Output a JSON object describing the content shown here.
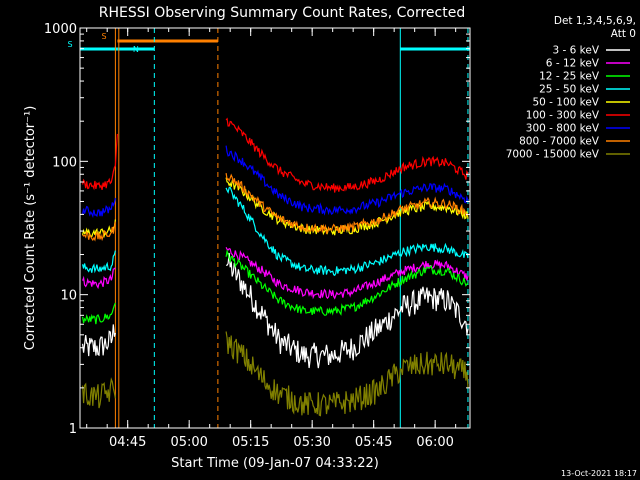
{
  "chart_data": {
    "type": "line",
    "title": "RHESSI Observing Summary Count Rates, Corrected",
    "xlabel": "Start Time (09-Jan-07 04:33:22)",
    "ylabel": "Corrected Count Rate (s⁻¹ detector⁻¹)",
    "yscale": "log",
    "ylim": [
      1,
      1000
    ],
    "xlim": [
      "04:33:22",
      "06:08:30"
    ],
    "x_ticks": [
      "04:45",
      "05:00",
      "05:15",
      "05:30",
      "05:45",
      "06:00"
    ],
    "y_ticks": [
      "1",
      "10",
      "100",
      "1000"
    ],
    "legend_header": [
      "Det 1,3,4,5,6,9,",
      "Att 0"
    ],
    "legend_placement": "right",
    "timestamp": "13-Oct-2021 18:17",
    "flags": [
      {
        "label": "S",
        "start": "04:33:22",
        "end": "04:42:30",
        "color": "#00ffff"
      },
      {
        "label": "S",
        "start": "04:42:30",
        "end": "05:07:00",
        "color": "#ff8000"
      },
      {
        "label": "N",
        "start": "04:42:30",
        "end": "04:51:30",
        "color": "#00ffff"
      },
      {
        "label": "",
        "start": "05:51:30",
        "end": "06:08:30",
        "color": "#00ffff"
      }
    ],
    "vertical_lines": [
      {
        "time": "04:33:22",
        "color": "#00ffff",
        "style": "solid"
      },
      {
        "time": "04:42:00",
        "color": "#ff8000",
        "style": "solid"
      },
      {
        "time": "04:42:50",
        "color": "#ff8000",
        "style": "solid"
      },
      {
        "time": "04:51:30",
        "color": "#00ffff",
        "style": "dashed"
      },
      {
        "time": "05:07:00",
        "color": "#ff8000",
        "style": "dashed"
      },
      {
        "time": "05:51:30",
        "color": "#00ffff",
        "style": "solid"
      },
      {
        "time": "06:08:00",
        "color": "#00ffff",
        "style": "dashed"
      }
    ],
    "gap": [
      "04:42:50",
      "05:09:30"
    ],
    "series": [
      {
        "name": "3 - 6 keV",
        "color": "#ffffff",
        "pre": [
          [
            "04:34",
            4.0
          ],
          [
            "04:38",
            4.0
          ],
          [
            "04:41",
            4.5
          ],
          [
            "04:42",
            6.0
          ]
        ],
        "post": [
          [
            "05:09",
            18.0
          ],
          [
            "05:13",
            12.0
          ],
          [
            "05:18",
            7.0
          ],
          [
            "05:22",
            4.5
          ],
          [
            "05:28",
            3.5
          ],
          [
            "05:35",
            3.5
          ],
          [
            "05:40",
            4.0
          ],
          [
            "05:46",
            5.5
          ],
          [
            "05:52",
            8.0
          ],
          [
            "05:58",
            9.5
          ],
          [
            "06:03",
            9.0
          ],
          [
            "06:08",
            6.0
          ]
        ]
      },
      {
        "name": "6 - 12 keV",
        "color": "#ff00ff",
        "pre": [
          [
            "04:34",
            12.5
          ],
          [
            "04:38",
            12.0
          ],
          [
            "04:41",
            13.0
          ],
          [
            "04:42",
            16.0
          ]
        ],
        "post": [
          [
            "05:09",
            22.0
          ],
          [
            "05:13",
            19.0
          ],
          [
            "05:18",
            15.0
          ],
          [
            "05:22",
            12.0
          ],
          [
            "05:28",
            10.5
          ],
          [
            "05:35",
            10.0
          ],
          [
            "05:40",
            10.5
          ],
          [
            "05:46",
            12.5
          ],
          [
            "05:52",
            15.0
          ],
          [
            "05:58",
            17.0
          ],
          [
            "06:03",
            16.5
          ],
          [
            "06:08",
            13.5
          ]
        ]
      },
      {
        "name": "12 - 25 keV",
        "color": "#00ff00",
        "pre": [
          [
            "04:34",
            6.5
          ],
          [
            "04:38",
            6.5
          ],
          [
            "04:41",
            7.0
          ],
          [
            "04:42",
            9.0
          ]
        ],
        "post": [
          [
            "05:09",
            20.0
          ],
          [
            "05:13",
            16.0
          ],
          [
            "05:18",
            11.5
          ],
          [
            "05:22",
            9.0
          ],
          [
            "05:28",
            7.5
          ],
          [
            "05:35",
            7.5
          ],
          [
            "05:40",
            8.0
          ],
          [
            "05:46",
            10.0
          ],
          [
            "05:52",
            13.0
          ],
          [
            "05:58",
            15.5
          ],
          [
            "06:03",
            15.0
          ],
          [
            "06:08",
            12.0
          ]
        ]
      },
      {
        "name": "25 - 50 keV",
        "color": "#00ffff",
        "pre": [
          [
            "04:34",
            16.0
          ],
          [
            "04:38",
            15.5
          ],
          [
            "04:41",
            16.5
          ],
          [
            "04:42",
            20.0
          ]
        ],
        "post": [
          [
            "05:09",
            65.0
          ],
          [
            "05:13",
            45.0
          ],
          [
            "05:18",
            27.0
          ],
          [
            "05:22",
            19.0
          ],
          [
            "05:28",
            15.5
          ],
          [
            "05:35",
            15.0
          ],
          [
            "05:40",
            15.5
          ],
          [
            "05:46",
            17.5
          ],
          [
            "05:52",
            21.0
          ],
          [
            "05:58",
            23.0
          ],
          [
            "06:03",
            22.0
          ],
          [
            "06:08",
            19.0
          ]
        ]
      },
      {
        "name": "50 - 100 keV",
        "color": "#ffff00",
        "pre": [
          [
            "04:34",
            29.0
          ],
          [
            "04:38",
            29.0
          ],
          [
            "04:41",
            30.0
          ],
          [
            "04:42",
            34.0
          ]
        ],
        "post": [
          [
            "05:09",
            72.0
          ],
          [
            "05:13",
            60.0
          ],
          [
            "05:18",
            44.0
          ],
          [
            "05:22",
            36.0
          ],
          [
            "05:28",
            31.0
          ],
          [
            "05:35",
            30.0
          ],
          [
            "05:40",
            31.0
          ],
          [
            "05:46",
            35.0
          ],
          [
            "05:52",
            42.0
          ],
          [
            "05:58",
            46.0
          ],
          [
            "06:03",
            45.0
          ],
          [
            "06:08",
            39.0
          ]
        ]
      },
      {
        "name": "100 - 300 keV",
        "color": "#ff0000",
        "pre": [
          [
            "04:34",
            68.0
          ],
          [
            "04:38",
            65.0
          ],
          [
            "04:41",
            70.0
          ],
          [
            "04:42",
            90.0
          ],
          [
            "04:42:40",
            200.0
          ]
        ],
        "post": [
          [
            "05:09",
            205.0
          ],
          [
            "05:13",
            160.0
          ],
          [
            "05:18",
            110.0
          ],
          [
            "05:22",
            85.0
          ],
          [
            "05:28",
            68.0
          ],
          [
            "05:35",
            63.0
          ],
          [
            "05:40",
            64.0
          ],
          [
            "05:46",
            72.0
          ],
          [
            "05:52",
            90.0
          ],
          [
            "05:58",
            100.0
          ],
          [
            "06:03",
            97.0
          ],
          [
            "06:08",
            77.0
          ]
        ]
      },
      {
        "name": "300 - 800 keV",
        "color": "#0000ff",
        "pre": [
          [
            "04:34",
            43.0
          ],
          [
            "04:38",
            41.0
          ],
          [
            "04:41",
            44.0
          ],
          [
            "04:42",
            55.0
          ]
        ],
        "post": [
          [
            "05:09",
            122.0
          ],
          [
            "05:13",
            100.0
          ],
          [
            "05:18",
            72.0
          ],
          [
            "05:22",
            55.0
          ],
          [
            "05:28",
            45.0
          ],
          [
            "05:35",
            43.0
          ],
          [
            "05:40",
            44.0
          ],
          [
            "05:46",
            49.0
          ],
          [
            "05:52",
            58.0
          ],
          [
            "05:58",
            64.0
          ],
          [
            "06:03",
            62.0
          ],
          [
            "06:08",
            51.0
          ]
        ]
      },
      {
        "name": "800 - 7000 keV",
        "color": "#ff8000",
        "pre": [
          [
            "04:34",
            28.0
          ],
          [
            "04:38",
            27.0
          ],
          [
            "04:41",
            29.0
          ],
          [
            "04:42",
            33.0
          ]
        ],
        "post": [
          [
            "05:09",
            80.0
          ],
          [
            "05:13",
            64.0
          ],
          [
            "05:18",
            46.0
          ],
          [
            "05:22",
            37.0
          ],
          [
            "05:28",
            32.0
          ],
          [
            "05:35",
            31.0
          ],
          [
            "05:40",
            32.0
          ],
          [
            "05:46",
            36.0
          ],
          [
            "05:52",
            44.0
          ],
          [
            "05:58",
            49.0
          ],
          [
            "06:03",
            48.0
          ],
          [
            "06:08",
            41.0
          ]
        ]
      },
      {
        "name": "7000 - 15000 keV",
        "color": "#808000",
        "pre": [
          [
            "04:34",
            1.8
          ],
          [
            "04:38",
            1.7
          ],
          [
            "04:41",
            1.9
          ],
          [
            "04:42",
            2.0
          ]
        ],
        "post": [
          [
            "05:09",
            4.5
          ],
          [
            "05:13",
            3.5
          ],
          [
            "05:18",
            2.3
          ],
          [
            "05:22",
            1.8
          ],
          [
            "05:28",
            1.5
          ],
          [
            "05:35",
            1.5
          ],
          [
            "05:40",
            1.6
          ],
          [
            "05:46",
            1.9
          ],
          [
            "05:52",
            2.8
          ],
          [
            "05:58",
            3.0
          ],
          [
            "06:03",
            3.0
          ],
          [
            "06:08",
            2.5
          ]
        ]
      }
    ]
  }
}
